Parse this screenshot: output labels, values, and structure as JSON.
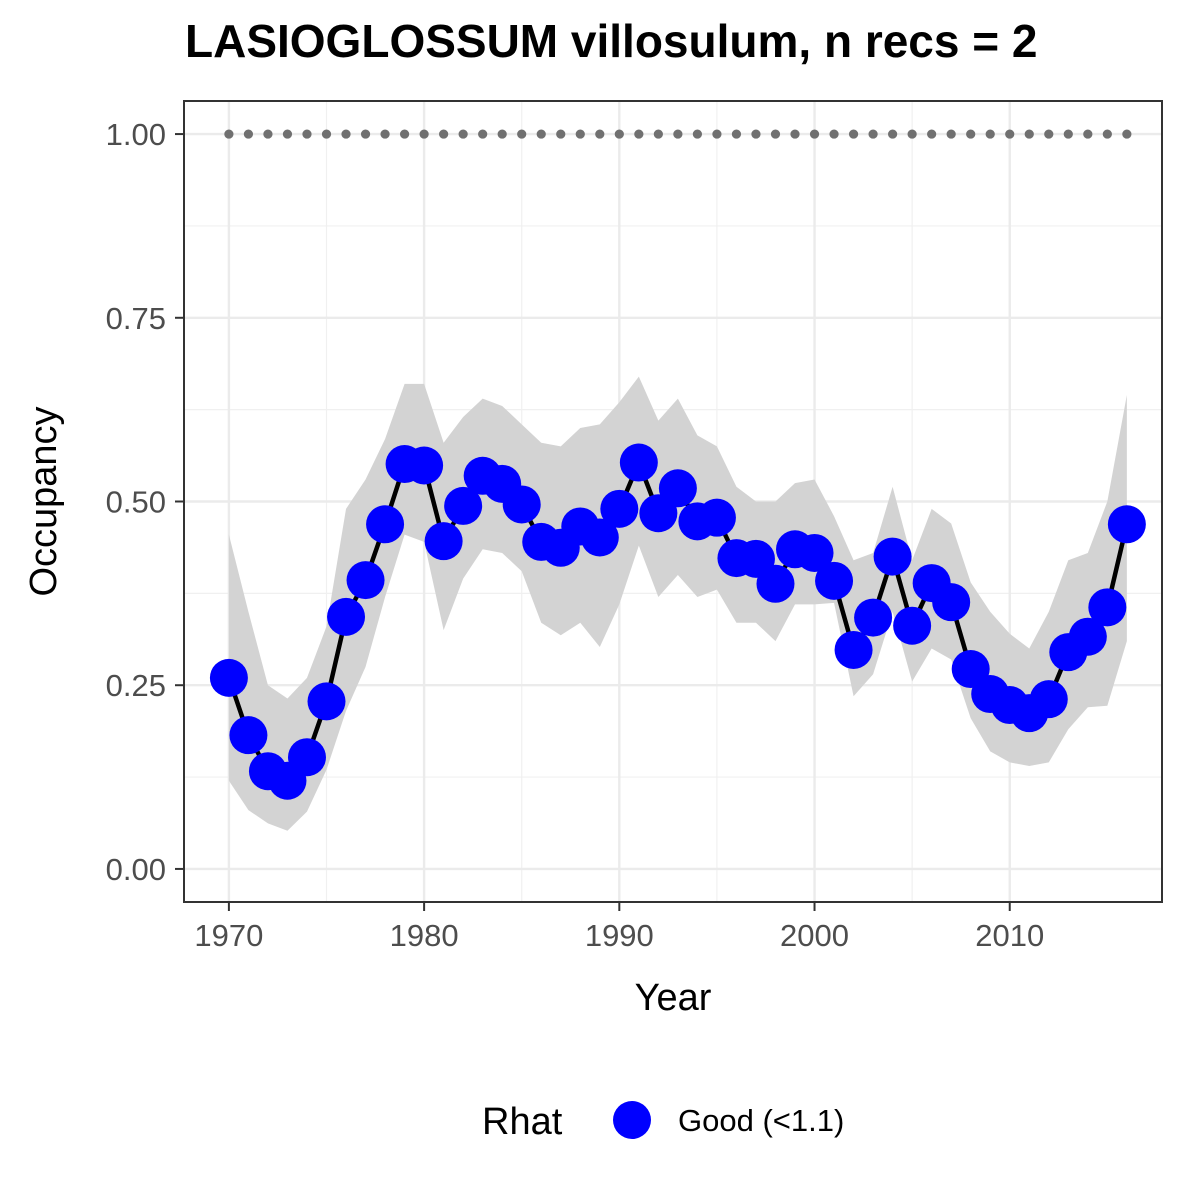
{
  "chart_data": {
    "type": "line",
    "title": "LASIOGLOSSUM villosulum, n recs = 2",
    "xlabel": "Year",
    "ylabel": "Occupancy",
    "xlim": [
      1967.7,
      2017.8
    ],
    "ylim": [
      -0.045,
      1.045
    ],
    "x_ticks": [
      1970,
      1980,
      1990,
      2000,
      2010
    ],
    "x_tick_labels": [
      "1970",
      "1980",
      "1990",
      "2000",
      "2010"
    ],
    "y_ticks": [
      0,
      0.25,
      0.5,
      0.75,
      1.0
    ],
    "y_tick_labels": [
      "0.00",
      "0.25",
      "0.50",
      "0.75",
      "1.00"
    ],
    "grid": true,
    "legend": {
      "title": "Rhat",
      "position": "bottom",
      "entries": [
        {
          "label": "Good (<1.1)",
          "color": "#0000ff"
        }
      ]
    },
    "colors": {
      "points": "#0000ff",
      "line": "#000000",
      "ribbon": "#d3d3d3",
      "reference": "#707070"
    },
    "reference_line": {
      "y": 1.0,
      "style": "dotted",
      "x_from": 1970,
      "x_to": 2016
    },
    "series": [
      {
        "x": [
          1970,
          1971,
          1972,
          1973,
          1974,
          1975,
          1976,
          1977,
          1978,
          1979,
          1980,
          1981,
          1982,
          1983,
          1984,
          1985,
          1986,
          1987,
          1988,
          1989,
          1990,
          1991,
          1992,
          1993,
          1994,
          1995,
          1996,
          1997,
          1998,
          1999,
          2000,
          2001,
          2002,
          2003,
          2004,
          2005,
          2006,
          2007,
          2008,
          2009,
          2010,
          2011,
          2012,
          2013,
          2014,
          2015,
          2016
        ],
        "y": [
          0.26,
          0.182,
          0.133,
          0.12,
          0.152,
          0.228,
          0.343,
          0.393,
          0.469,
          0.551,
          0.549,
          0.446,
          0.494,
          0.535,
          0.524,
          0.496,
          0.445,
          0.437,
          0.466,
          0.451,
          0.49,
          0.553,
          0.484,
          0.518,
          0.473,
          0.478,
          0.423,
          0.422,
          0.388,
          0.435,
          0.43,
          0.392,
          0.298,
          0.342,
          0.425,
          0.331,
          0.389,
          0.363,
          0.272,
          0.238,
          0.223,
          0.212,
          0.231,
          0.295,
          0.316,
          0.356,
          0.469
        ],
        "lower": [
          0.12,
          0.08,
          0.062,
          0.052,
          0.078,
          0.135,
          0.215,
          0.275,
          0.37,
          0.455,
          0.445,
          0.325,
          0.395,
          0.435,
          0.43,
          0.405,
          0.335,
          0.318,
          0.335,
          0.302,
          0.36,
          0.44,
          0.37,
          0.4,
          0.37,
          0.38,
          0.335,
          0.335,
          0.31,
          0.36,
          0.36,
          0.362,
          0.235,
          0.265,
          0.35,
          0.255,
          0.3,
          0.285,
          0.205,
          0.16,
          0.145,
          0.14,
          0.145,
          0.19,
          0.22,
          0.222,
          0.31
        ],
        "upper": [
          0.455,
          0.35,
          0.25,
          0.232,
          0.26,
          0.33,
          0.49,
          0.53,
          0.585,
          0.66,
          0.66,
          0.58,
          0.615,
          0.64,
          0.63,
          0.605,
          0.58,
          0.575,
          0.6,
          0.605,
          0.635,
          0.67,
          0.61,
          0.64,
          0.59,
          0.575,
          0.52,
          0.5,
          0.5,
          0.525,
          0.53,
          0.48,
          0.42,
          0.43,
          0.52,
          0.42,
          0.49,
          0.47,
          0.39,
          0.35,
          0.32,
          0.3,
          0.35,
          0.42,
          0.43,
          0.5,
          0.645
        ]
      }
    ]
  }
}
